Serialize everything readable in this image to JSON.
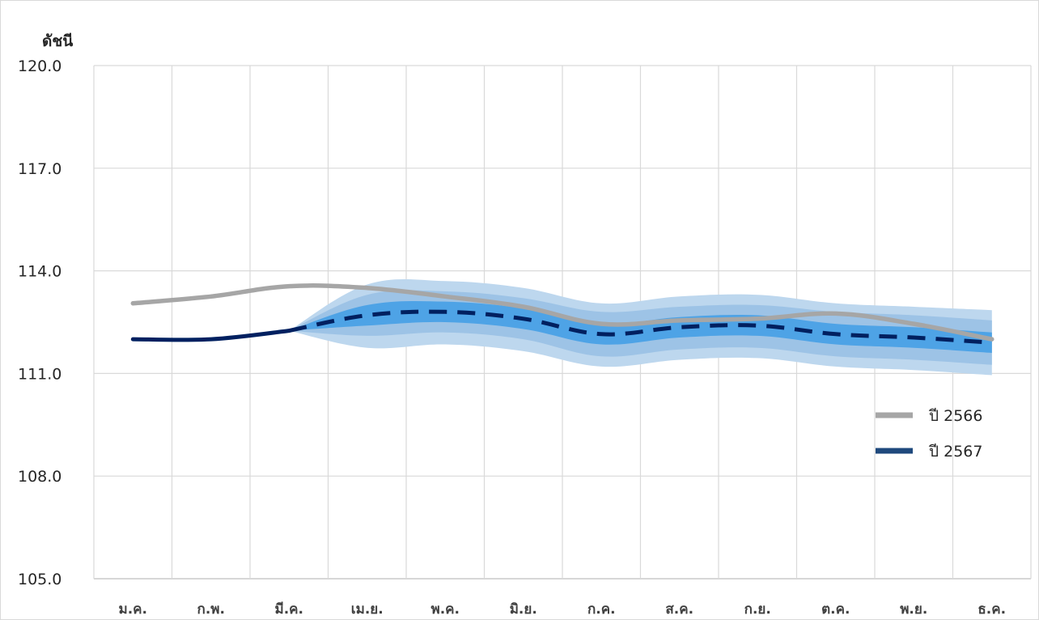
{
  "chart_data": {
    "type": "line",
    "title": "",
    "ylabel": "ดัชนี",
    "xlabel": "",
    "ylim": [
      105,
      120
    ],
    "yticks": [
      "105.0",
      "108.0",
      "111.0",
      "114.0",
      "117.0",
      "120.0"
    ],
    "categories": [
      "ม.ค.",
      "ก.พ.",
      "มี.ค.",
      "เม.ย.",
      "พ.ค.",
      "มิ.ย.",
      "ก.ค.",
      "ส.ค.",
      "ก.ย.",
      "ต.ค.",
      "พ.ย.",
      "ธ.ค."
    ],
    "grid": true,
    "legend_position": "right",
    "series": [
      {
        "name": "ปี 2566",
        "color": "#a6a6a6",
        "style": "solid",
        "values": [
          113.05,
          113.25,
          113.55,
          113.5,
          113.25,
          112.95,
          112.45,
          112.55,
          112.6,
          112.75,
          112.45,
          112.0
        ]
      },
      {
        "name": "ปี 2567",
        "color": "#002060",
        "actual_values": [
          112.0,
          112.0,
          112.25
        ],
        "forecast_values": [
          null,
          null,
          112.25,
          112.7,
          112.8,
          112.6,
          112.15,
          112.35,
          112.4,
          112.15,
          112.05,
          111.9
        ],
        "forecast_style": "dashed"
      }
    ],
    "fan_bands": [
      {
        "level": "outer",
        "color": "#bdd7ee",
        "upper": [
          null,
          null,
          112.25,
          113.6,
          113.7,
          113.5,
          113.05,
          113.25,
          113.3,
          113.05,
          112.95,
          112.85
        ],
        "lower": [
          null,
          null,
          112.25,
          111.75,
          111.85,
          111.65,
          111.2,
          111.4,
          111.45,
          111.2,
          111.1,
          110.95
        ]
      },
      {
        "level": "middle",
        "color": "#9dc3e6",
        "upper": [
          null,
          null,
          112.25,
          113.3,
          113.4,
          113.2,
          112.8,
          112.95,
          113.0,
          112.8,
          112.7,
          112.55
        ],
        "lower": [
          null,
          null,
          112.25,
          112.1,
          112.2,
          112.0,
          111.5,
          111.7,
          111.75,
          111.5,
          111.4,
          111.25
        ]
      },
      {
        "level": "inner",
        "color": "#4ea3e6",
        "upper": [
          null,
          null,
          112.25,
          113.0,
          113.1,
          112.9,
          112.45,
          112.65,
          112.7,
          112.45,
          112.35,
          112.2
        ],
        "lower": [
          null,
          null,
          112.25,
          112.4,
          112.5,
          112.3,
          111.85,
          112.05,
          112.1,
          111.85,
          111.75,
          111.6
        ]
      }
    ]
  }
}
